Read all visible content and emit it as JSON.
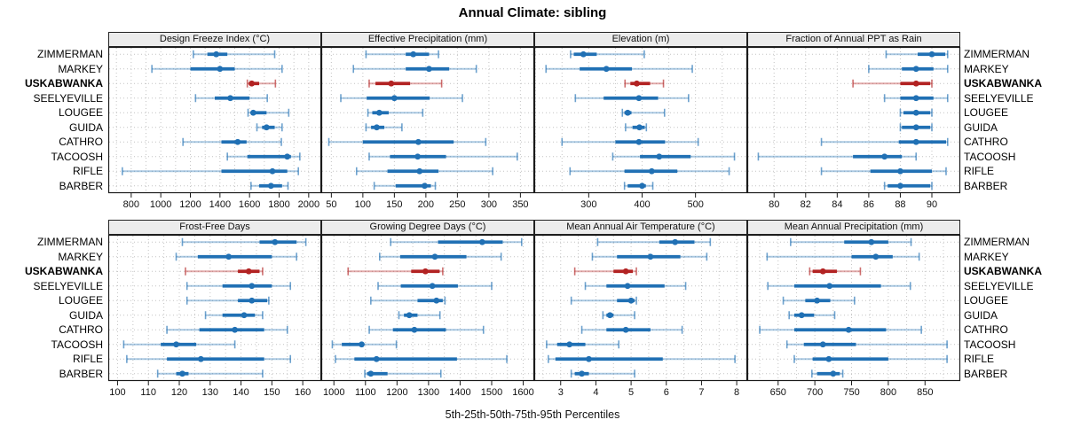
{
  "title": "Annual Climate: sibling",
  "caption": "5th-25th-50th-75th-95th Percentiles",
  "chart_data": {
    "type": "dotplot-percentile-intervals",
    "title": "Annual Climate: sibling",
    "xlabel": "5th-25th-50th-75th-95th Percentiles",
    "legend_position": "none",
    "grid": "dotted",
    "stations": [
      "ZIMMERMAN",
      "MARKEY",
      "USKABWANKA",
      "SEELYEVILLE",
      "LOUGEE",
      "GUIDA",
      "CATHRO",
      "TACOOSH",
      "RIFLE",
      "BARBER"
    ],
    "highlight_station": "USKABWANKA",
    "colors": {
      "series": "#2070B4",
      "highlight": "#B22222",
      "grid": "#c4c4c4",
      "strip_bg": "#ececec",
      "border": "#1a1a1a"
    },
    "percentiles": [
      5,
      25,
      50,
      75,
      95
    ],
    "panels": [
      {
        "title": "Design Freeze Index (°C)",
        "xlim": [
          645,
          2085
        ],
        "ticks": [
          800,
          1000,
          1200,
          1400,
          1600,
          1800,
          2000
        ],
        "grid_step": 100,
        "data": [
          [
            1220,
            1315,
            1375,
            1450,
            1770
          ],
          [
            940,
            1200,
            1400,
            1500,
            1820
          ],
          [
            1585,
            1595,
            1615,
            1665,
            1775
          ],
          [
            1235,
            1365,
            1470,
            1600,
            1720
          ],
          [
            1590,
            1610,
            1625,
            1715,
            1865
          ],
          [
            1650,
            1685,
            1715,
            1770,
            1820
          ],
          [
            1150,
            1410,
            1520,
            1580,
            1815
          ],
          [
            1450,
            1585,
            1855,
            1880,
            1940
          ],
          [
            740,
            1410,
            1755,
            1855,
            1930
          ],
          [
            1610,
            1665,
            1745,
            1820,
            1860
          ]
        ]
      },
      {
        "title": "Effective Precipitation (mm)",
        "xlim": [
          34,
          372
        ],
        "ticks": [
          50,
          100,
          150,
          200,
          250,
          300,
          350
        ],
        "grid_step": 50,
        "data": [
          [
            105,
            168,
            180,
            205,
            220
          ],
          [
            85,
            168,
            205,
            237,
            280
          ],
          [
            110,
            120,
            145,
            175,
            225
          ],
          [
            65,
            106,
            150,
            206,
            258
          ],
          [
            108,
            115,
            126,
            141,
            195
          ],
          [
            105,
            113,
            122,
            134,
            162
          ],
          [
            46,
            100,
            188,
            244,
            295
          ],
          [
            110,
            143,
            187,
            232,
            345
          ],
          [
            90,
            139,
            190,
            220,
            306
          ],
          [
            118,
            152,
            198,
            208,
            215
          ]
        ]
      },
      {
        "title": "Elevation (m)",
        "xlim": [
          198,
          597
        ],
        "ticks": [
          300,
          400,
          500
        ],
        "grid_step": 50,
        "data": [
          [
            266,
            272,
            290,
            315,
            404
          ],
          [
            220,
            283,
            333,
            381,
            494
          ],
          [
            368,
            378,
            390,
            415,
            440
          ],
          [
            275,
            328,
            394,
            430,
            487
          ],
          [
            363,
            367,
            373,
            380,
            442
          ],
          [
            369,
            382,
            395,
            405,
            408
          ],
          [
            250,
            350,
            394,
            443,
            505
          ],
          [
            345,
            396,
            432,
            491,
            573
          ],
          [
            265,
            367,
            418,
            466,
            563
          ],
          [
            367,
            373,
            400,
            407,
            420
          ]
        ]
      },
      {
        "title": "Fraction of Annual PPT as Rain",
        "xlim": [
          78.3,
          91.8
        ],
        "ticks": [
          80,
          82,
          84,
          86,
          88,
          90
        ],
        "grid_step": 2,
        "data": [
          [
            87.1,
            89.1,
            90.0,
            90.85,
            91.0
          ],
          [
            86.0,
            88.1,
            89.0,
            90.1,
            91.0
          ],
          [
            85.0,
            88.0,
            89.0,
            89.9,
            90.0
          ],
          [
            87.0,
            88.0,
            89.0,
            90.1,
            91.0
          ],
          [
            88.0,
            88.2,
            89.0,
            89.9,
            90.0
          ],
          [
            88.0,
            88.1,
            89.0,
            89.9,
            90.0
          ],
          [
            83.0,
            87.9,
            89.0,
            90.9,
            91.0
          ],
          [
            79.0,
            85.0,
            87.0,
            88.1,
            89.0
          ],
          [
            83.0,
            86.1,
            88.0,
            90.0,
            90.9
          ],
          [
            87.0,
            87.2,
            88.0,
            89.9,
            90.0
          ]
        ]
      },
      {
        "title": "Frost-Free Days",
        "xlim": [
          97,
          166
        ],
        "ticks": [
          100,
          110,
          120,
          130,
          140,
          150,
          160
        ],
        "grid_step": 5,
        "data": [
          [
            121,
            146,
            151,
            158,
            161
          ],
          [
            119,
            126,
            136,
            150,
            158
          ],
          [
            122,
            139,
            142.5,
            146,
            147
          ],
          [
            122.5,
            134,
            143.5,
            150,
            156
          ],
          [
            122.5,
            139,
            143.5,
            148.5,
            149
          ],
          [
            128.5,
            134,
            141,
            144.5,
            147
          ],
          [
            116,
            126.5,
            138,
            147.5,
            155
          ],
          [
            102,
            114,
            119,
            125.5,
            138
          ],
          [
            103,
            116,
            127,
            147.5,
            156
          ],
          [
            113,
            119,
            121,
            123,
            147
          ]
        ]
      },
      {
        "title": "Growing Degree Days (°C)",
        "xlim": [
          960,
          1635
        ],
        "ticks": [
          1000,
          1100,
          1200,
          1300,
          1400,
          1500,
          1600
        ],
        "grid_step": 50,
        "data": [
          [
            1180,
            1330,
            1470,
            1535,
            1595
          ],
          [
            1145,
            1210,
            1320,
            1420,
            1530
          ],
          [
            1045,
            1245,
            1290,
            1335,
            1345
          ],
          [
            1140,
            1212,
            1312,
            1393,
            1500
          ],
          [
            1117,
            1265,
            1325,
            1345,
            1352
          ],
          [
            1206,
            1222,
            1239,
            1265,
            1336
          ],
          [
            1112,
            1187,
            1255,
            1355,
            1474
          ],
          [
            995,
            1025,
            1088,
            1095,
            1198
          ],
          [
            1005,
            1065,
            1135,
            1390,
            1548
          ],
          [
            1098,
            1105,
            1117,
            1170,
            1339
          ]
        ]
      },
      {
        "title": "Mean Annual Air Temperature (°C)",
        "xlim": [
          2.25,
          8.3
        ],
        "ticks": [
          3,
          4,
          5,
          6,
          7,
          8
        ],
        "grid_step": 0.5,
        "data": [
          [
            4.05,
            5.8,
            6.25,
            6.8,
            7.25
          ],
          [
            3.9,
            4.6,
            5.55,
            6.4,
            7.15
          ],
          [
            3.4,
            4.5,
            4.85,
            5.05,
            5.15
          ],
          [
            3.7,
            4.3,
            4.9,
            5.95,
            6.55
          ],
          [
            3.3,
            4.6,
            5.0,
            5.1,
            5.15
          ],
          [
            4.2,
            4.3,
            4.4,
            4.5,
            5.1
          ],
          [
            3.6,
            4.3,
            4.85,
            5.55,
            6.45
          ],
          [
            2.6,
            2.9,
            3.25,
            3.7,
            4.65
          ],
          [
            2.65,
            2.85,
            3.8,
            5.9,
            7.95
          ],
          [
            3.3,
            3.4,
            3.6,
            3.8,
            5.1
          ]
        ]
      },
      {
        "title": "Mean Annual Precipitation (mm)",
        "xlim": [
          608,
          898
        ],
        "ticks": [
          650,
          700,
          750,
          800,
          850
        ],
        "grid_step": 25,
        "data": [
          [
            667,
            740,
            777,
            800,
            831
          ],
          [
            635,
            750,
            783,
            806,
            842
          ],
          [
            693,
            697,
            711,
            730,
            762
          ],
          [
            636,
            672,
            720,
            790,
            830
          ],
          [
            657,
            687,
            703,
            721,
            754
          ],
          [
            665,
            672,
            682,
            699,
            727
          ],
          [
            625,
            672,
            746,
            797,
            845
          ],
          [
            662,
            685,
            711,
            756,
            880
          ],
          [
            672,
            697,
            719,
            800,
            880
          ],
          [
            696,
            703,
            725,
            734,
            738
          ]
        ]
      }
    ]
  }
}
